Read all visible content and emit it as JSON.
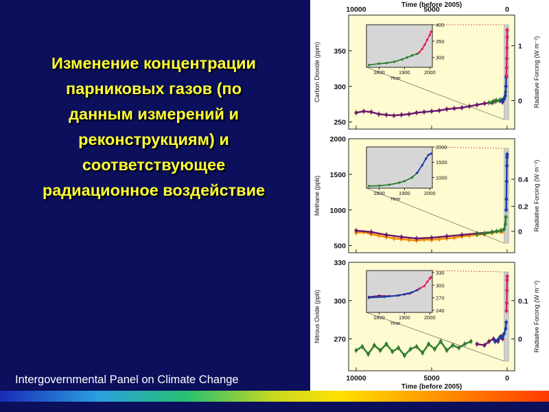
{
  "slide": {
    "title_lines": [
      "Изменение концентрации",
      "парниковых газов (по",
      "данным измерений и",
      "реконструкциям) и",
      "соответствующее",
      "радиационное воздействие"
    ],
    "footer": "Intergovernmental Panel on Climate Change",
    "colors": {
      "background": "#0b0f5c",
      "title": "#ffff33",
      "plot_background": "#fffbd0",
      "inset_background": "#d6d6d6",
      "recent_band": "#cfcfcf"
    }
  },
  "chart_data": {
    "type": "scatter",
    "time_axis": {
      "label": "Time (before 2005)",
      "ticks": [
        10000,
        5000,
        0
      ],
      "range": [
        10500,
        -500
      ]
    },
    "panels": [
      {
        "y_label": "Carbon Dioxide (ppm)",
        "y_ticks": [
          250,
          300,
          350
        ],
        "y_range": [
          240,
          400
        ],
        "rf_label": "Radiative Forcing (W m⁻²)",
        "rf_ticks": [
          "0",
          "1"
        ],
        "rf_values": [
          0,
          1
        ],
        "rf_at_y": [
          280,
          357
        ],
        "inset": {
          "x_label": "Year",
          "x_ticks": [
            1800,
            1900,
            2000
          ],
          "x_range": [
            1750,
            2010
          ],
          "y_ticks": [
            300,
            350,
            400
          ],
          "y_range": [
            270,
            400
          ],
          "series": [
            {
              "color": "#2e7d32",
              "points": [
                [
                  1760,
                  277
                ],
                [
                  1800,
                  281
                ],
                [
                  1830,
                  283
                ],
                [
                  1860,
                  287
                ],
                [
                  1890,
                  294
                ],
                [
                  1910,
                  300
                ],
                [
                  1930,
                  306
                ],
                [
                  1950,
                  311
                ]
              ]
            },
            {
              "color": "#e0205a",
              "points": [
                [
                  1958,
                  315
                ],
                [
                  1970,
                  326
                ],
                [
                  1980,
                  339
                ],
                [
                  1990,
                  354
                ],
                [
                  2000,
                  369
                ],
                [
                  2005,
                  379
                ]
              ]
            }
          ]
        },
        "series": [
          {
            "color": "#6b1a6b",
            "points": [
              [
                10000,
                263
              ],
              [
                9500,
                265
              ],
              [
                9000,
                264
              ],
              [
                8500,
                261
              ],
              [
                8000,
                260
              ],
              [
                7500,
                259
              ],
              [
                7000,
                260
              ],
              [
                6500,
                261
              ],
              [
                6000,
                263
              ],
              [
                5500,
                264
              ],
              [
                5000,
                265
              ],
              [
                4500,
                266
              ],
              [
                4000,
                268
              ],
              [
                3500,
                269
              ],
              [
                3000,
                270
              ],
              [
                2500,
                272
              ],
              [
                2000,
                274
              ],
              [
                1500,
                276
              ],
              [
                1000,
                277
              ],
              [
                800,
                279
              ],
              [
                500,
                280
              ],
              [
                300,
                278
              ]
            ]
          },
          {
            "color": "#2e7d32",
            "points": [
              [
                1200,
                277
              ],
              [
                900,
                279
              ],
              [
                700,
                280
              ],
              [
                400,
                281
              ],
              [
                250,
                282
              ],
              [
                150,
                285
              ],
              [
                100,
                292
              ]
            ]
          },
          {
            "color": "#1a3ea8",
            "points": [
              [
                350,
                279
              ],
              [
                280,
                280
              ],
              [
                200,
                282
              ],
              [
                120,
                287
              ],
              [
                80,
                300
              ],
              [
                60,
                313
              ]
            ]
          },
          {
            "color": "#e0205a",
            "points": [
              [
                47,
                315
              ],
              [
                35,
                326
              ],
              [
                25,
                339
              ],
              [
                15,
                354
              ],
              [
                5,
                369
              ],
              [
                0,
                379
              ]
            ]
          }
        ]
      },
      {
        "y_label": "Methane (ppb)",
        "y_ticks": [
          500,
          1000,
          1500,
          2000
        ],
        "y_range": [
          400,
          2000
        ],
        "rf_label": "Radiative Forcing (W m⁻²)",
        "rf_ticks": [
          "0",
          "0.2",
          "0.4"
        ],
        "rf_values": [
          0,
          0.2,
          0.4
        ],
        "rf_at_y": [
          700,
          1050,
          1430
        ],
        "inset": {
          "x_label": "Year",
          "x_ticks": [
            1800,
            1900,
            2000
          ],
          "x_range": [
            1750,
            2010
          ],
          "y_ticks": [
            1000,
            1500,
            2000
          ],
          "y_range": [
            650,
            2000
          ],
          "series": [
            {
              "color": "#2e7d32",
              "points": [
                [
                  1760,
                  720
                ],
                [
                  1800,
                  730
                ],
                [
                  1840,
                  760
                ],
                [
                  1880,
                  830
                ],
                [
                  1900,
                  880
                ],
                [
                  1930,
                  1000
                ],
                [
                  1950,
                  1150
                ]
              ]
            },
            {
              "color": "#1a3ea8",
              "points": [
                [
                  1950,
                  1150
                ],
                [
                  1970,
                  1400
                ],
                [
                  1985,
                  1620
                ],
                [
                  1995,
                  1740
                ],
                [
                  2005,
                  1780
                ]
              ]
            }
          ]
        },
        "series": [
          {
            "color": "#f28c00",
            "points": [
              [
                10000,
                680
              ],
              [
                9500,
                690
              ],
              [
                9000,
                660
              ],
              [
                8500,
                640
              ],
              [
                8000,
                620
              ],
              [
                7500,
                600
              ],
              [
                7000,
                590
              ],
              [
                6500,
                580
              ],
              [
                6000,
                570
              ],
              [
                5500,
                585
              ],
              [
                5000,
                580
              ],
              [
                4500,
                590
              ],
              [
                4000,
                600
              ],
              [
                3500,
                610
              ],
              [
                3000,
                630
              ],
              [
                2500,
                640
              ],
              [
                2000,
                650
              ],
              [
                1500,
                660
              ],
              [
                1000,
                680
              ],
              [
                500,
                700
              ],
              [
                300,
                700
              ]
            ]
          },
          {
            "color": "#6b1a6b",
            "points": [
              [
                10000,
                710
              ],
              [
                9000,
                690
              ],
              [
                8000,
                650
              ],
              [
                7000,
                620
              ],
              [
                6000,
                600
              ],
              [
                5000,
                610
              ],
              [
                4000,
                630
              ],
              [
                3000,
                650
              ],
              [
                2000,
                670
              ],
              [
                1000,
                690
              ],
              [
                400,
                710
              ]
            ]
          },
          {
            "color": "#2e7d32",
            "points": [
              [
                2000,
                660
              ],
              [
                1500,
                670
              ],
              [
                1000,
                690
              ],
              [
                700,
                700
              ],
              [
                400,
                710
              ],
              [
                200,
                730
              ],
              [
                120,
                800
              ],
              [
                80,
                900
              ]
            ]
          },
          {
            "color": "#1a3ea8",
            "points": [
              [
                60,
                1000
              ],
              [
                50,
                1150
              ],
              [
                35,
                1400
              ],
              [
                20,
                1620
              ],
              [
                10,
                1740
              ],
              [
                0,
                1780
              ]
            ]
          }
        ]
      },
      {
        "y_label": "Nitrous Oxide (ppb)",
        "y_ticks": [
          270,
          300,
          330
        ],
        "y_range": [
          245,
          330
        ],
        "rf_label": "Radiative Forcing (W m⁻²)",
        "rf_ticks": [
          "0",
          "0.1"
        ],
        "rf_values": [
          0,
          0.1
        ],
        "rf_at_y": [
          270,
          300
        ],
        "inset": {
          "x_label": "Year",
          "x_ticks": [
            1800,
            1900,
            2000
          ],
          "x_range": [
            1750,
            2010
          ],
          "y_ticks": [
            240,
            270,
            300,
            330
          ],
          "y_range": [
            235,
            335
          ],
          "series": [
            {
              "color": "#6b1a6b",
              "points": [
                [
                  1760,
                  272
                ],
                [
                  1800,
                  275
                ],
                [
                  1840,
                  274
                ],
                [
                  1880,
                  276
                ],
                [
                  1900,
                  278
                ],
                [
                  1920,
                  280
                ],
                [
                  1950,
                  288
                ]
              ]
            },
            {
              "color": "#1a3ea8",
              "points": [
                [
                  1760,
                  270
                ],
                [
                  1820,
                  272
                ],
                [
                  1870,
                  275
                ],
                [
                  1930,
                  283
                ],
                [
                  1960,
                  292
                ]
              ]
            },
            {
              "color": "#e0205a",
              "points": [
                [
                  1960,
                  292
                ],
                [
                  1978,
                  298
                ],
                [
                  1990,
                  308
                ],
                [
                  2000,
                  316
                ],
                [
                  2005,
                  319
                ]
              ]
            }
          ]
        },
        "series": [
          {
            "color": "#2e7d32",
            "points": [
              [
                10000,
                261
              ],
              [
                9600,
                264
              ],
              [
                9200,
                258
              ],
              [
                8800,
                265
              ],
              [
                8400,
                261
              ],
              [
                8000,
                266
              ],
              [
                7600,
                260
              ],
              [
                7200,
                263
              ],
              [
                6800,
                257
              ],
              [
                6400,
                262
              ],
              [
                6000,
                264
              ],
              [
                5600,
                259
              ],
              [
                5200,
                266
              ],
              [
                4800,
                262
              ],
              [
                4400,
                268
              ],
              [
                4000,
                261
              ],
              [
                3600,
                265
              ],
              [
                3200,
                263
              ],
              [
                2800,
                266
              ],
              [
                2400,
                268
              ]
            ]
          },
          {
            "color": "#6b1a6b",
            "points": [
              [
                2000,
                266
              ],
              [
                1500,
                265
              ],
              [
                1200,
                268
              ],
              [
                900,
                270
              ],
              [
                600,
                268
              ],
              [
                400,
                272
              ],
              [
                300,
                270
              ]
            ]
          },
          {
            "color": "#1a3ea8",
            "points": [
              [
                800,
                268
              ],
              [
                500,
                271
              ],
              [
                300,
                272
              ],
              [
                200,
                274
              ],
              [
                100,
                278
              ],
              [
                60,
                283
              ]
            ]
          },
          {
            "color": "#e0205a",
            "points": [
              [
                45,
                292
              ],
              [
                27,
                298
              ],
              [
                15,
                308
              ],
              [
                5,
                316
              ],
              [
                0,
                319
              ]
            ]
          }
        ]
      }
    ]
  }
}
